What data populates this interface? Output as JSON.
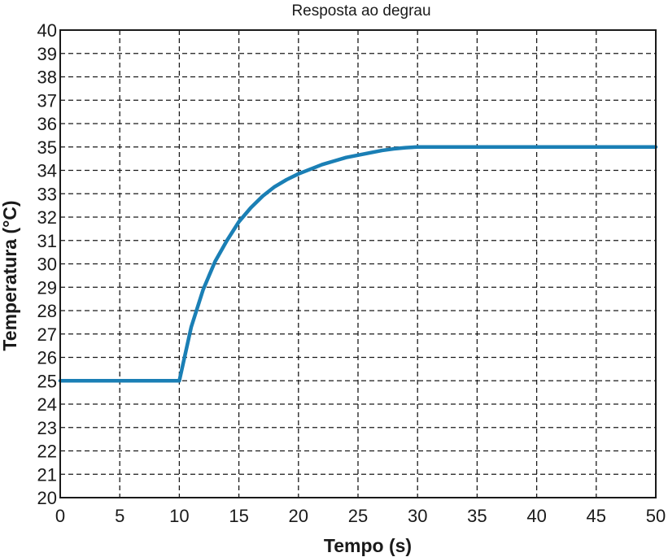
{
  "chart_data": {
    "type": "line",
    "title": "Resposta ao degrau",
    "xlabel": "Tempo (s)",
    "ylabel": "Temperatura (°C)",
    "xlim": [
      0,
      50
    ],
    "ylim": [
      20,
      40
    ],
    "xticks": [
      0,
      5,
      10,
      15,
      20,
      25,
      30,
      35,
      40,
      45,
      50
    ],
    "yticks": [
      20,
      21,
      22,
      23,
      24,
      25,
      26,
      27,
      28,
      29,
      30,
      31,
      32,
      33,
      34,
      35,
      36,
      37,
      38,
      39,
      40
    ],
    "grid": true,
    "legend": "none",
    "series": [
      {
        "color": "#1a7fb5",
        "x": [
          0,
          10,
          11,
          12,
          13,
          14,
          15,
          16,
          17,
          18,
          19,
          20,
          21,
          22,
          23,
          24,
          25,
          26,
          27,
          28,
          29,
          30,
          35,
          40,
          45,
          50
        ],
        "y": [
          25,
          25,
          27.3,
          28.9,
          30.1,
          31.0,
          31.8,
          32.4,
          32.9,
          33.3,
          33.6,
          33.85,
          34.05,
          34.25,
          34.4,
          34.55,
          34.65,
          34.75,
          34.85,
          34.92,
          34.97,
          35,
          35,
          35,
          35,
          35
        ]
      }
    ]
  }
}
